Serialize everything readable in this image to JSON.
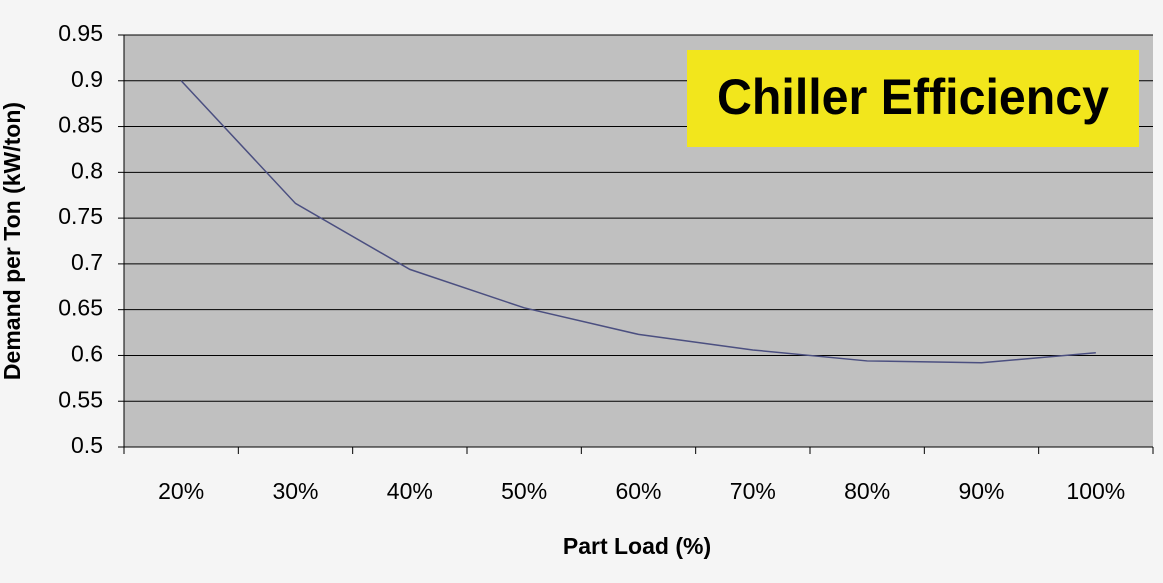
{
  "chart_data": {
    "type": "line",
    "title": "Chiller Efficiency",
    "x_label": "Part Load (%)",
    "y_label": "Demand per Ton (kW/ton)",
    "categories": [
      "20%",
      "30%",
      "40%",
      "50%",
      "60%",
      "70%",
      "80%",
      "90%",
      "100%"
    ],
    "series": [
      {
        "color": "#4b4f80",
        "values": [
          0.9,
          0.766,
          0.694,
          0.652,
          0.623,
          0.606,
          0.594,
          0.592,
          0.603
        ]
      }
    ],
    "ylim": [
      0.5,
      0.95
    ],
    "yticks": [
      0.95,
      0.9,
      0.85,
      0.8,
      0.75,
      0.7,
      0.65,
      0.6,
      0.55,
      0.5
    ],
    "grid": true
  }
}
